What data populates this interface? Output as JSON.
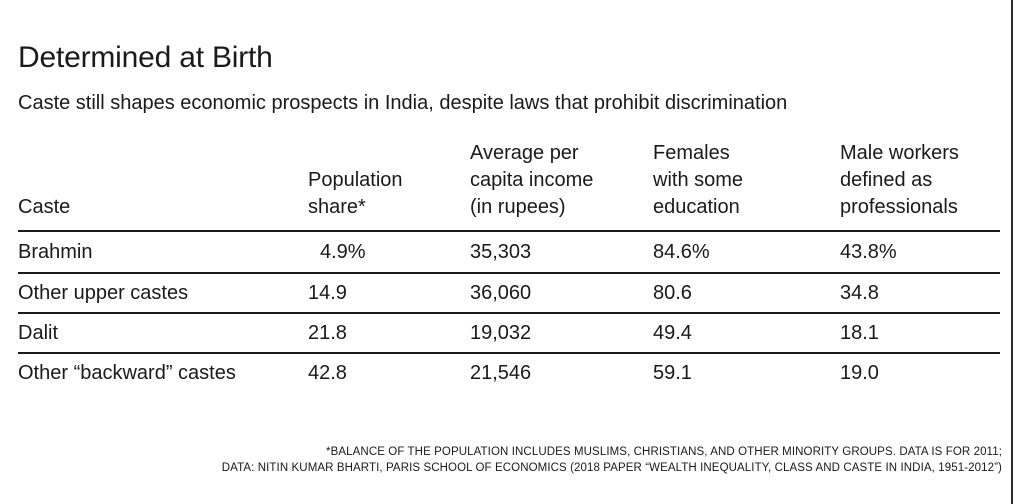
{
  "chart_data": {
    "type": "table",
    "title": "Determined at Birth",
    "subtitle": "Caste still shapes economic prospects in India, despite laws that prohibit discrimination",
    "columns": [
      "Caste",
      "Population\nshare*",
      "Average per\ncapita income\n(in rupees)",
      "Females\nwith some\neducation",
      "Male workers\ndefined as\nprofessionals"
    ],
    "rows": [
      [
        "Brahmin",
        "4.9%",
        "35,303",
        "84.6%",
        "43.8%"
      ],
      [
        "Other upper castes",
        "14.9",
        "36,060",
        "80.6",
        "34.8"
      ],
      [
        "Dalit",
        "21.8",
        "19,032",
        "49.4",
        "18.1"
      ],
      [
        "Other “backward” castes",
        "42.8",
        "21,546",
        "59.1",
        "19.0"
      ]
    ],
    "footnotes": [
      "*BALANCE OF THE POPULATION INCLUDES MUSLIMS, CHRISTIANS, AND OTHER MINORITY GROUPS. DATA IS FOR 2011;",
      "DATA: NITIN KUMAR BHARTI, PARIS SCHOOL OF ECONOMICS (2018 PAPER “WEALTH INEQUALITY, CLASS AND CASTE IN INDIA, 1951-2012”)"
    ]
  }
}
